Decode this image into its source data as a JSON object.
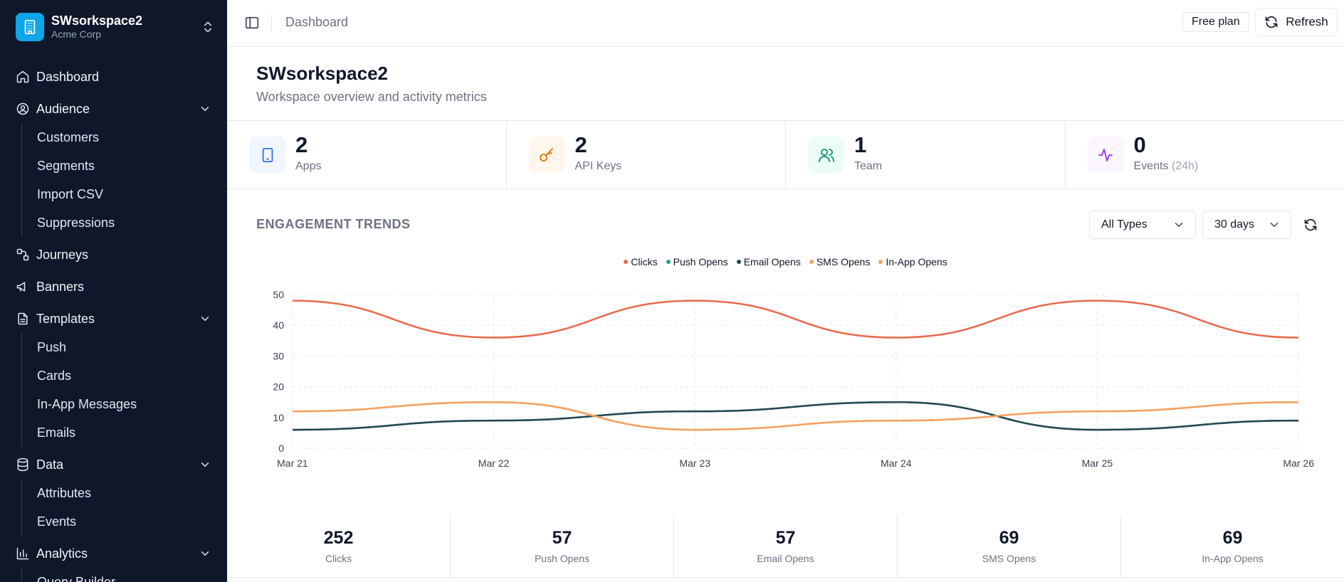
{
  "workspace": {
    "name": "SWsorkspace2",
    "org": "Acme Corp"
  },
  "nav": {
    "dashboard": "Dashboard",
    "audience": "Audience",
    "audience_items": [
      "Customers",
      "Segments",
      "Import CSV",
      "Suppressions"
    ],
    "journeys": "Journeys",
    "banners": "Banners",
    "templates": "Templates",
    "templates_items": [
      "Push",
      "Cards",
      "In-App Messages",
      "Emails"
    ],
    "data": "Data",
    "data_items": [
      "Attributes",
      "Events"
    ],
    "analytics": "Analytics",
    "analytics_items": [
      "Query Builder"
    ]
  },
  "topbar": {
    "breadcrumb": "Dashboard",
    "plan": "Free plan",
    "refresh_label": "Refresh"
  },
  "header": {
    "title": "SWsorkspace2",
    "subtitle": "Workspace overview and activity metrics"
  },
  "stats": [
    {
      "value": "2",
      "label": "Apps",
      "suffix": "",
      "icon": "tablet-icon",
      "color": "#2563eb",
      "bg": "#eff6ff"
    },
    {
      "value": "2",
      "label": "API Keys",
      "suffix": "",
      "icon": "key-icon",
      "color": "#d97706",
      "bg": "#fff7ed"
    },
    {
      "value": "1",
      "label": "Team",
      "suffix": "",
      "icon": "users-icon",
      "color": "#059669",
      "bg": "#ecfdf5"
    },
    {
      "value": "0",
      "label": "Events",
      "suffix": "(24h)",
      "icon": "activity-icon",
      "color": "#9333ea",
      "bg": "#faf5ff"
    }
  ],
  "engagement": {
    "title": "ENGAGEMENT TRENDS",
    "type_filter": "All Types",
    "range_filter": "30 days"
  },
  "chart_data": {
    "type": "line",
    "x": [
      "Mar 21",
      "Mar 22",
      "Mar 23",
      "Mar 24",
      "Mar 25",
      "Mar 26"
    ],
    "ylim": [
      0,
      50
    ],
    "yticks": [
      0,
      10,
      20,
      30,
      40,
      50
    ],
    "grid": true,
    "legend_position": "top",
    "series": [
      {
        "name": "Clicks",
        "color": "#e8694a",
        "values": [
          48,
          36,
          48,
          36,
          48,
          36
        ]
      },
      {
        "name": "Push Opens",
        "color": "#2a9d8f",
        "values": [
          6,
          9,
          12,
          15,
          6,
          9
        ]
      },
      {
        "name": "Email Opens",
        "color": "#264653",
        "values": [
          6,
          9,
          12,
          15,
          6,
          9
        ]
      },
      {
        "name": "SMS Opens",
        "color": "#f4a261",
        "values": [
          12,
          15,
          6,
          9,
          12,
          15
        ]
      },
      {
        "name": "In-App Opens",
        "color": "#f4a261",
        "values": [
          12,
          15,
          6,
          9,
          12,
          15
        ]
      }
    ]
  },
  "totals": [
    {
      "value": "252",
      "label": "Clicks"
    },
    {
      "value": "57",
      "label": "Push Opens"
    },
    {
      "value": "57",
      "label": "Email Opens"
    },
    {
      "value": "69",
      "label": "SMS Opens"
    },
    {
      "value": "69",
      "label": "In-App Opens"
    }
  ]
}
